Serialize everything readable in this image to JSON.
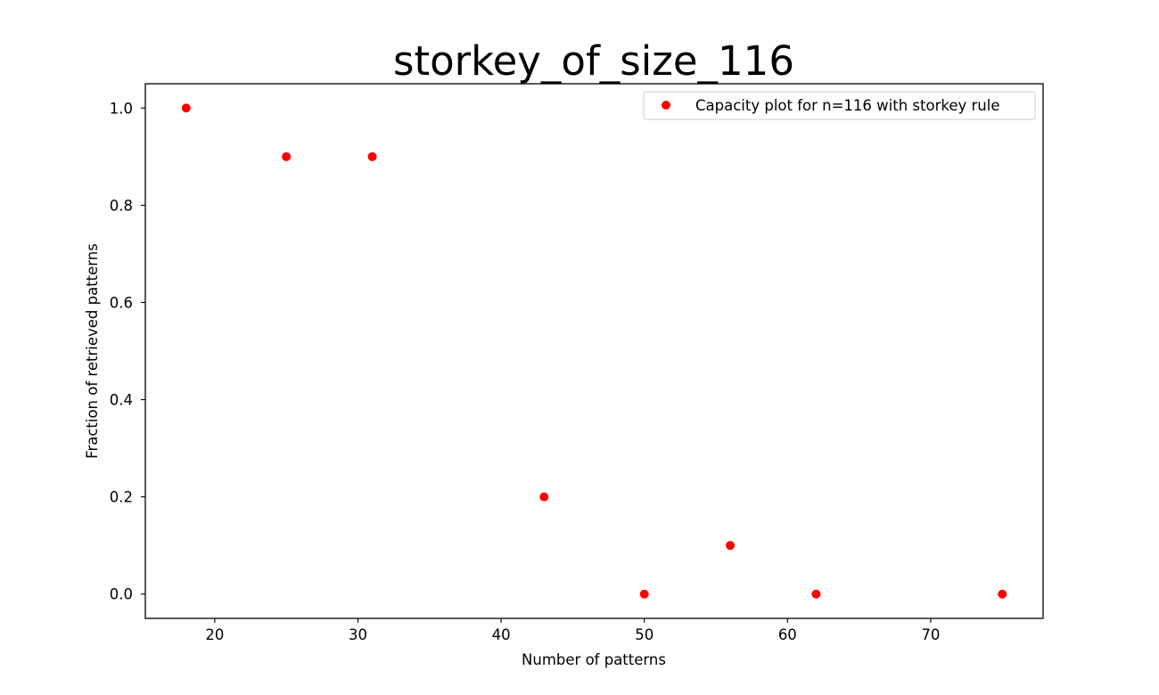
{
  "chart_data": {
    "type": "scatter",
    "title": "storkey_of_size_116",
    "xlabel": "Number of patterns",
    "ylabel": "Fraction of retrieved patterns",
    "xlim": [
      15.15,
      77.85
    ],
    "ylim": [
      -0.05,
      1.05
    ],
    "xticks": [
      20,
      30,
      40,
      50,
      60,
      70
    ],
    "yticks": [
      0.0,
      0.2,
      0.4,
      0.6,
      0.8,
      1.0
    ],
    "xtick_labels": [
      "20",
      "30",
      "40",
      "50",
      "60",
      "70"
    ],
    "ytick_labels": [
      "0.0",
      "0.2",
      "0.4",
      "0.6",
      "0.8",
      "1.0"
    ],
    "grid": false,
    "legend_position": "top-right",
    "series": [
      {
        "name": "Capacity plot for n=116 with storkey rule",
        "color": "#ff0000",
        "x": [
          18,
          25,
          31,
          43,
          50,
          56,
          62,
          75
        ],
        "y": [
          1.0,
          0.9,
          0.9,
          0.2,
          0.0,
          0.1,
          0.0,
          0.0
        ]
      }
    ]
  }
}
